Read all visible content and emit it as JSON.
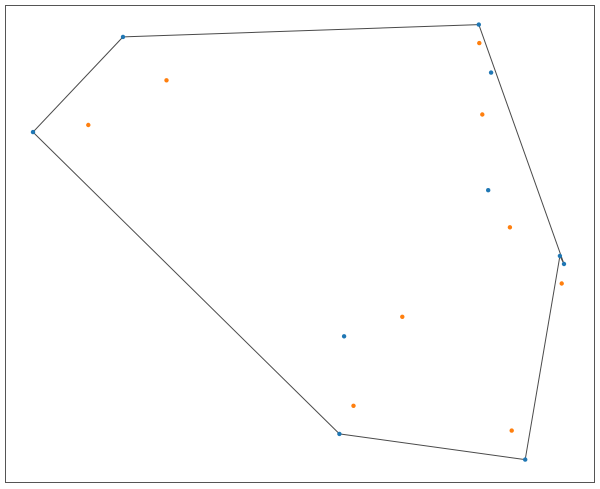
{
  "diagram": {
    "type": "convex-hull-scatter",
    "x_range": [
      0,
      100
    ],
    "y_range": [
      0,
      100
    ],
    "colors": {
      "series_a": "#1f77b4",
      "series_b": "#ff7f0e",
      "hull": "#4a4a4a",
      "frame": "#555555",
      "background": "#ffffff"
    },
    "hull_vertices": [
      {
        "x": 19.9,
        "y": 93.5
      },
      {
        "x": 80.4,
        "y": 96.1
      },
      {
        "x": 94.9,
        "y": 45.8
      },
      {
        "x": 94.2,
        "y": 47.5
      },
      {
        "x": 88.3,
        "y": 4.7
      },
      {
        "x": 56.7,
        "y": 10.1
      },
      {
        "x": 4.6,
        "y": 73.5
      }
    ],
    "points_a": [
      {
        "x": 19.9,
        "y": 93.5
      },
      {
        "x": 4.6,
        "y": 73.5
      },
      {
        "x": 80.4,
        "y": 96.1
      },
      {
        "x": 82.5,
        "y": 86.0
      },
      {
        "x": 82.0,
        "y": 61.3
      },
      {
        "x": 94.2,
        "y": 47.5
      },
      {
        "x": 94.9,
        "y": 45.8
      },
      {
        "x": 57.5,
        "y": 30.6
      },
      {
        "x": 56.7,
        "y": 10.1
      },
      {
        "x": 88.3,
        "y": 4.7
      }
    ],
    "points_b": [
      {
        "x": 27.3,
        "y": 84.4
      },
      {
        "x": 14.0,
        "y": 75.0
      },
      {
        "x": 80.5,
        "y": 92.2
      },
      {
        "x": 81.0,
        "y": 77.2
      },
      {
        "x": 85.7,
        "y": 53.5
      },
      {
        "x": 94.5,
        "y": 41.7
      },
      {
        "x": 67.4,
        "y": 34.7
      },
      {
        "x": 59.1,
        "y": 16.0
      },
      {
        "x": 86.0,
        "y": 10.8
      }
    ]
  }
}
